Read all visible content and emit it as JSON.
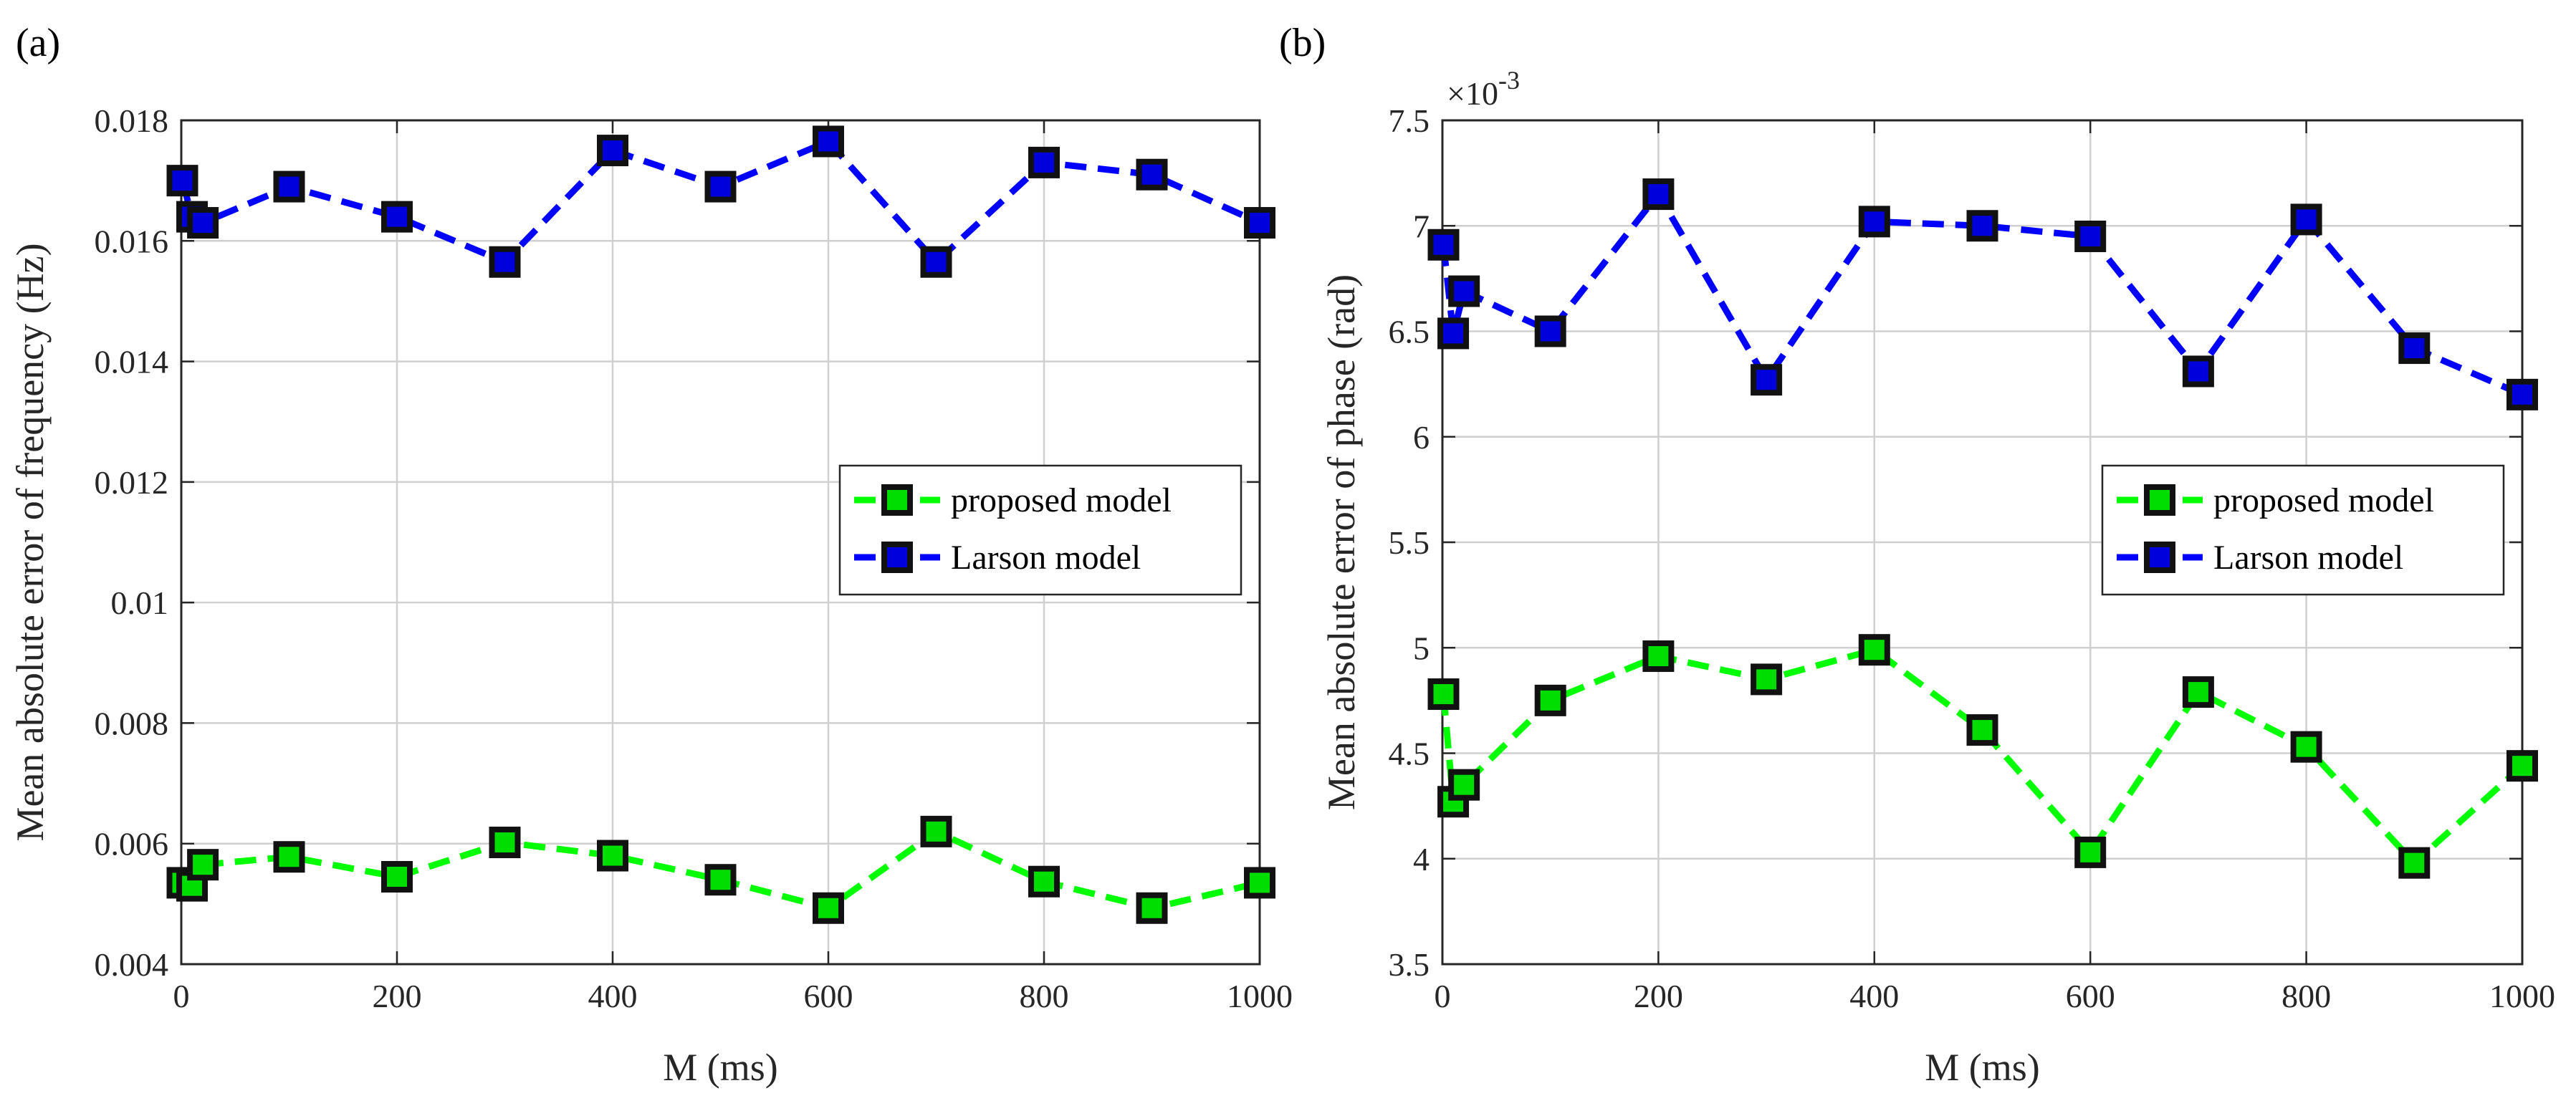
{
  "chart_data": [
    {
      "type": "line",
      "panel_label": "(a)",
      "xlabel": "M (ms)",
      "ylabel": "Mean absolute error of frequency (Hz)",
      "xlim": [
        0,
        1000
      ],
      "ylim": [
        0.004,
        0.018
      ],
      "xticks": [
        0,
        200,
        400,
        600,
        800,
        1000
      ],
      "xtick_labels": [
        "0",
        "200",
        "400",
        "600",
        "800",
        "1000"
      ],
      "yticks": [
        0.004,
        0.006,
        0.008,
        0.01,
        0.012,
        0.014,
        0.016,
        0.018
      ],
      "ytick_labels": [
        "0.004",
        "0.006",
        "0.008",
        "0.01",
        "0.012",
        "0.014",
        "0.016",
        "0.018"
      ],
      "exponent_label": "",
      "grid": true,
      "legend_position": "center-right",
      "x": [
        1,
        10,
        20,
        100,
        200,
        300,
        400,
        500,
        600,
        700,
        800,
        900,
        1000
      ],
      "series": [
        {
          "name": "proposed model",
          "line_color": "#00ff00",
          "marker_color": "#00dd00",
          "values": [
            0.00535,
            0.0053,
            0.00565,
            0.00578,
            0.00545,
            0.00602,
            0.0058,
            0.0054,
            0.00493,
            0.0062,
            0.00537,
            0.00493,
            0.00535
          ]
        },
        {
          "name": "Larson model",
          "line_color": "#0000ff",
          "marker_color": "#0000dd",
          "values": [
            0.017,
            0.0164,
            0.0163,
            0.0169,
            0.0164,
            0.01565,
            0.0175,
            0.0169,
            0.01765,
            0.01565,
            0.0173,
            0.0171,
            0.0163
          ]
        }
      ]
    },
    {
      "type": "line",
      "panel_label": "(b)",
      "xlabel": "M (ms)",
      "ylabel": "Mean absolute error of phase (rad)",
      "xlim": [
        0,
        1000
      ],
      "ylim": [
        3.5,
        7.5
      ],
      "xticks": [
        0,
        200,
        400,
        600,
        800,
        1000
      ],
      "xtick_labels": [
        "0",
        "200",
        "400",
        "600",
        "800",
        "1000"
      ],
      "yticks": [
        3.5,
        4,
        4.5,
        5,
        5.5,
        6,
        6.5,
        7,
        7.5
      ],
      "ytick_labels": [
        "3.5",
        "4",
        "4.5",
        "5",
        "5.5",
        "6",
        "6.5",
        "7",
        "7.5"
      ],
      "exponent_label": "×10",
      "exponent_power": "-3",
      "grid": true,
      "legend_position": "center-right",
      "x": [
        1,
        10,
        20,
        100,
        200,
        300,
        400,
        500,
        600,
        700,
        800,
        900,
        1000
      ],
      "series": [
        {
          "name": "proposed model",
          "line_color": "#00ff00",
          "marker_color": "#00dd00",
          "values": [
            4.78,
            4.27,
            4.35,
            4.75,
            4.96,
            4.85,
            4.99,
            4.61,
            4.03,
            4.79,
            4.53,
            3.98,
            4.44
          ]
        },
        {
          "name": "Larson model",
          "line_color": "#0000ff",
          "marker_color": "#0000dd",
          "values": [
            6.91,
            6.49,
            6.69,
            6.5,
            7.15,
            6.27,
            7.02,
            7.0,
            6.95,
            6.31,
            7.03,
            6.42,
            6.2
          ]
        }
      ]
    }
  ]
}
